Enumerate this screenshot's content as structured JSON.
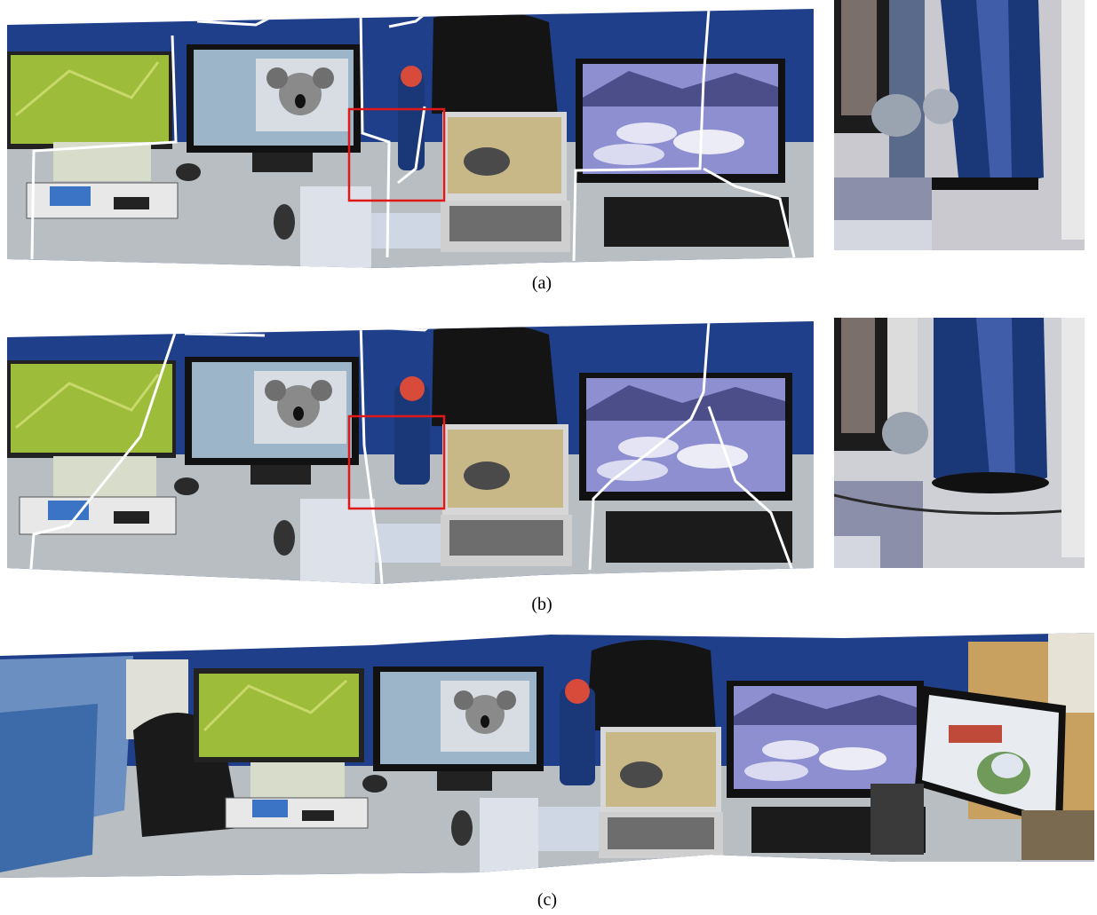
{
  "figure": {
    "captions": {
      "a": "(a)",
      "b": "(b)",
      "c": "(c)"
    },
    "colors": {
      "wall": "#1f3f8a",
      "desk": "#b9bec2",
      "seam": "#ffffff",
      "highlight_box": "#e01818",
      "koala_screen": "#9db5c8",
      "green_screen": "#9cbc3a",
      "lake_screen": "#8d8fd0",
      "elephant_screen": "#c8b888",
      "flask_blue": "#1a3778"
    }
  }
}
